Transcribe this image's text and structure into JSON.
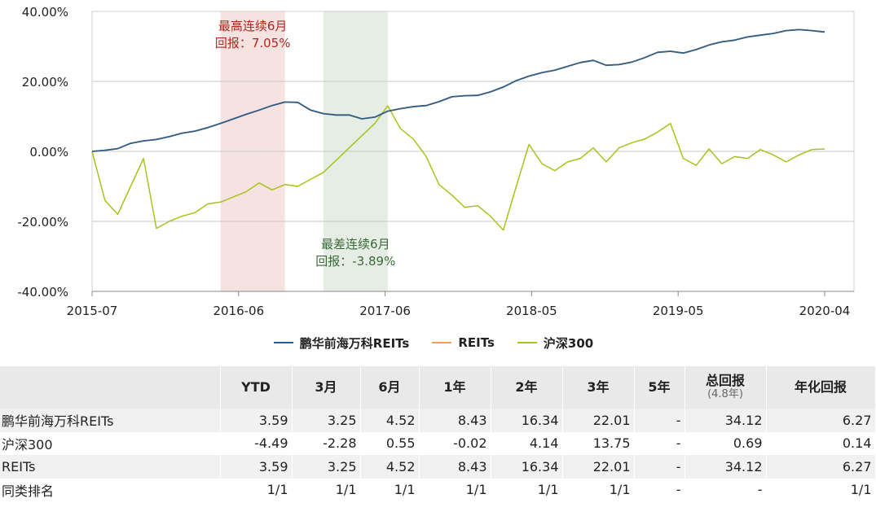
{
  "chart_data": {
    "type": "line",
    "xlabels": [
      "2015-07",
      "2016-06",
      "2017-06",
      "2018-05",
      "2019-05",
      "2020-04"
    ],
    "yticks": [
      "40.00%",
      "20.00%",
      "0.00%",
      "-20.00%",
      "-40.00%"
    ],
    "ylim": [
      -40,
      40
    ],
    "grid": "horizontal",
    "legend_position": "bottom",
    "months": 58,
    "series": [
      {
        "name": "鹏华前海万科REITs",
        "color": "#2e5f8a",
        "values": [
          0,
          0.3,
          0.8,
          2.3,
          3,
          3.4,
          4.2,
          5.2,
          5.8,
          6.8,
          8,
          9.3,
          10.6,
          11.8,
          13.1,
          14.1,
          14,
          11.8,
          10.8,
          10.4,
          10.4,
          9.3,
          9.8,
          11.5,
          12.2,
          12.8,
          13.1,
          14.2,
          15.6,
          15.9,
          16,
          17,
          18.4,
          20.2,
          21.5,
          22.5,
          23.2,
          24.3,
          25.4,
          26,
          24.6,
          24.8,
          25.5,
          26.8,
          28.3,
          28.6,
          28.1,
          29.1,
          30.4,
          31.3,
          31.8,
          32.7,
          33.2,
          33.7,
          34.5,
          34.8,
          34.5,
          34.12
        ]
      },
      {
        "name": "REITs",
        "color": "#f0a050",
        "values": [
          0,
          0.3,
          0.8,
          2.3,
          3,
          3.4,
          4.2,
          5.2,
          5.8,
          6.8,
          8,
          9.3,
          10.6,
          11.8,
          13.1,
          14.1,
          14,
          11.8,
          10.8,
          10.4,
          10.4,
          9.3,
          9.8,
          11.5,
          12.2,
          12.8,
          13.1,
          14.2,
          15.6,
          15.9,
          16,
          17,
          18.4,
          20.2,
          21.5,
          22.5,
          23.2,
          24.3,
          25.4,
          26,
          24.6,
          24.8,
          25.5,
          26.8,
          28.3,
          28.6,
          28.1,
          29.1,
          30.4,
          31.3,
          31.8,
          32.7,
          33.2,
          33.7,
          34.5,
          34.8,
          34.5,
          34.12
        ]
      },
      {
        "name": "沪深300",
        "color": "#a6c41c",
        "values": [
          0,
          -14,
          -18,
          -10,
          -2,
          -22,
          -20,
          -18.5,
          -17.5,
          -15,
          -14.5,
          -13,
          -11.5,
          -9,
          -11,
          -9.5,
          -10,
          -8,
          -6,
          -2.5,
          1,
          4.5,
          8,
          13,
          6.5,
          3.5,
          -1.5,
          -9.5,
          -12.5,
          -16,
          -15.5,
          -18.5,
          -22.5,
          -10,
          2,
          -3.5,
          -5.5,
          -3,
          -2,
          1,
          -3,
          1,
          2.5,
          3.5,
          5.5,
          8,
          -2,
          -4,
          0.69,
          -3.5,
          -1.5,
          -2,
          0.5,
          -1,
          -3,
          -1,
          0.5,
          0.69
        ]
      }
    ],
    "highlights": [
      {
        "label": "最高连续6月",
        "text": "回报：7.05%",
        "start": 10,
        "end": 15,
        "color": "#f6e3e1",
        "text_color": "#b0281f"
      },
      {
        "label": "最差连续6月",
        "text": "回报：-3.89%",
        "start": 18,
        "end": 23,
        "color": "#e6ede4",
        "text_color": "#3a6a38"
      }
    ]
  },
  "legend": [
    "鹏华前海万科REITs",
    "REITs",
    "沪深300"
  ],
  "table": {
    "headers": [
      "",
      "YTD",
      "3月",
      "6月",
      "1年",
      "2年",
      "3年",
      "5年",
      "总回报",
      "年化回报"
    ],
    "header_sub": "(4.8年)",
    "rows": [
      [
        "鹏华前海万科REITs",
        "3.59",
        "3.25",
        "4.52",
        "8.43",
        "16.34",
        "22.01",
        "-",
        "34.12",
        "6.27"
      ],
      [
        "沪深300",
        "-4.49",
        "-2.28",
        "0.55",
        "-0.02",
        "4.14",
        "13.75",
        "-",
        "0.69",
        "0.14"
      ],
      [
        "REITs",
        "3.59",
        "3.25",
        "4.52",
        "8.43",
        "16.34",
        "22.01",
        "-",
        "34.12",
        "6.27"
      ],
      [
        "同类排名",
        "1/1",
        "1/1",
        "1/1",
        "1/1",
        "1/1",
        "1/1",
        "-",
        "-",
        "1/1"
      ]
    ]
  }
}
